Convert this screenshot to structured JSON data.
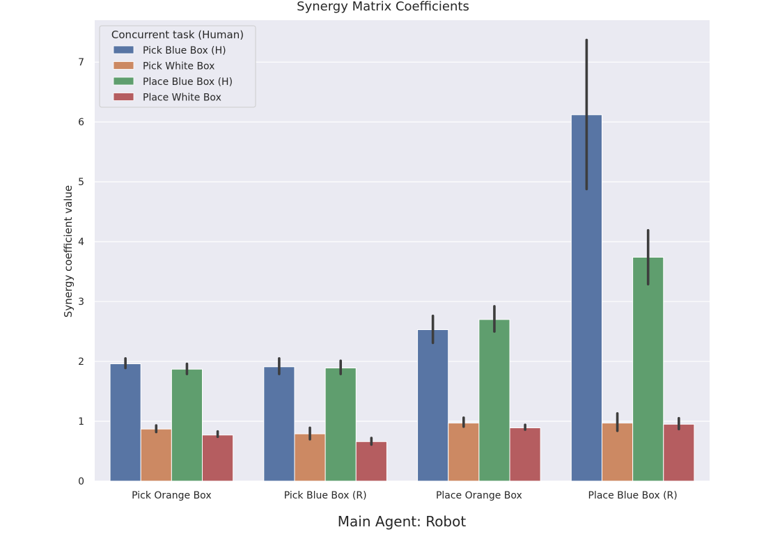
{
  "chart_data": {
    "type": "bar",
    "title": "Synergy Matrix Coefficients",
    "xlabel": "Main Agent: Robot",
    "ylabel": "Synergy coefficient value",
    "ylim": [
      0,
      7.7
    ],
    "yticks": [
      0,
      1,
      2,
      3,
      4,
      5,
      6,
      7
    ],
    "grid": true,
    "legend_title": "Concurrent task (Human)",
    "legend_position": "top-left",
    "categories": [
      "Pick Orange Box",
      "Pick Blue Box (R)",
      "Place Orange Box",
      "Place Blue Box (R)"
    ],
    "series": [
      {
        "name": "Pick Blue Box (H)",
        "color": "#5875a4",
        "values": [
          1.96,
          1.91,
          2.53,
          6.12
        ],
        "ci": [
          [
            1.89,
            2.05
          ],
          [
            1.79,
            2.05
          ],
          [
            2.31,
            2.76
          ],
          [
            4.88,
            7.37
          ]
        ]
      },
      {
        "name": "Pick White Box",
        "color": "#cc8963",
        "values": [
          0.87,
          0.79,
          0.97,
          0.97
        ],
        "ci": [
          [
            0.82,
            0.93
          ],
          [
            0.7,
            0.89
          ],
          [
            0.91,
            1.06
          ],
          [
            0.84,
            1.13
          ]
        ]
      },
      {
        "name": "Place Blue Box (H)",
        "color": "#5f9e6e",
        "values": [
          1.87,
          1.89,
          2.7,
          3.74
        ],
        "ci": [
          [
            1.79,
            1.96
          ],
          [
            1.79,
            2.01
          ],
          [
            2.5,
            2.92
          ],
          [
            3.29,
            4.19
          ]
        ]
      },
      {
        "name": "Place White Box",
        "color": "#b55d60",
        "values": [
          0.77,
          0.66,
          0.89,
          0.95
        ],
        "ci": [
          [
            0.74,
            0.83
          ],
          [
            0.61,
            0.72
          ],
          [
            0.86,
            0.94
          ],
          [
            0.87,
            1.05
          ]
        ]
      }
    ]
  }
}
